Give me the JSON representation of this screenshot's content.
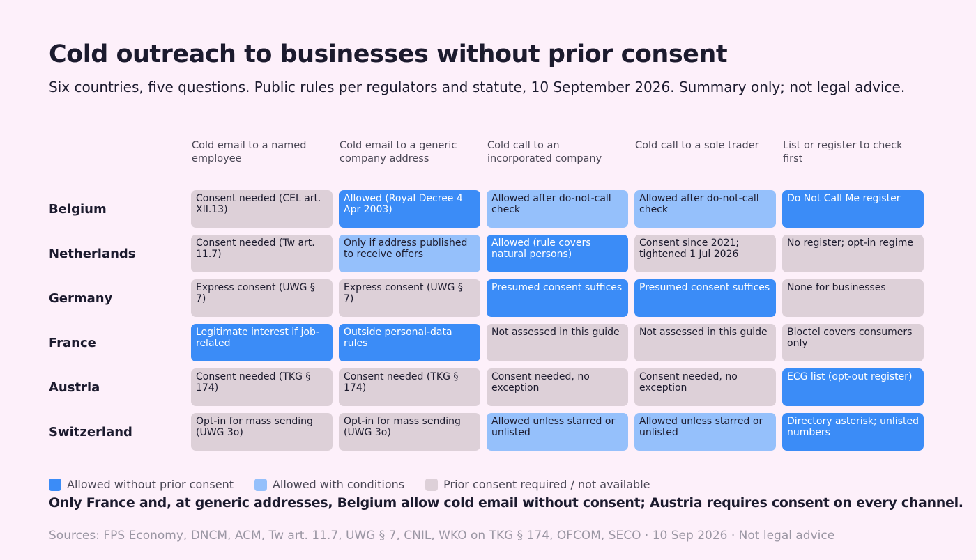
{
  "title": "Cold outreach to businesses without prior consent",
  "subtitle": "Six countries, five questions. Public rules per regulators and statute, 10 September 2026. Summary only; not legal advice.",
  "colors": {
    "allowed": "#3b8cf7",
    "conditions": "#95c0fb",
    "consent": "#ddd0d8"
  },
  "legend": [
    {
      "key": "allowed",
      "label": "Allowed without prior consent"
    },
    {
      "key": "conditions",
      "label": "Allowed with conditions"
    },
    {
      "key": "consent",
      "label": "Prior consent required / not available"
    }
  ],
  "takeaway": "Only France and, at generic addresses, Belgium allow cold email without consent; Austria requires consent on every channel.",
  "sources": "Sources: FPS Economy, DNCM, ACM, Tw art. 11.7, UWG § 7, CNIL, WKO on TKG § 174, OFCOM, SECO · 10 Sep 2026 · Not legal advice",
  "chart_data": {
    "type": "table",
    "columns": [
      "Cold email to a named employee",
      "Cold email to a generic company address",
      "Cold call to an incorporated company",
      "Cold call to a sole trader",
      "List or register to check first"
    ],
    "rows": [
      {
        "country": "Belgium",
        "cells": [
          {
            "text": "Consent needed (CEL art. XII.13)",
            "status": "consent"
          },
          {
            "text": "Allowed (Royal Decree 4 Apr 2003)",
            "status": "allowed"
          },
          {
            "text": "Allowed after do-not-call check",
            "status": "conditions"
          },
          {
            "text": "Allowed after do-not-call check",
            "status": "conditions"
          },
          {
            "text": "Do Not Call Me register",
            "status": "allowed"
          }
        ]
      },
      {
        "country": "Netherlands",
        "cells": [
          {
            "text": "Consent needed (Tw art. 11.7)",
            "status": "consent"
          },
          {
            "text": "Only if address published to receive offers",
            "status": "conditions"
          },
          {
            "text": "Allowed (rule covers natural persons)",
            "status": "allowed"
          },
          {
            "text": "Consent since 2021; tightened 1 Jul 2026",
            "status": "consent"
          },
          {
            "text": "No register; opt-in regime",
            "status": "consent"
          }
        ]
      },
      {
        "country": "Germany",
        "cells": [
          {
            "text": "Express consent (UWG § 7)",
            "status": "consent"
          },
          {
            "text": "Express consent (UWG § 7)",
            "status": "consent"
          },
          {
            "text": "Presumed consent suffices",
            "status": "allowed"
          },
          {
            "text": "Presumed consent suffices",
            "status": "allowed"
          },
          {
            "text": "None for businesses",
            "status": "consent"
          }
        ]
      },
      {
        "country": "France",
        "cells": [
          {
            "text": "Legitimate interest if job-related",
            "status": "allowed"
          },
          {
            "text": "Outside personal-data rules",
            "status": "allowed"
          },
          {
            "text": "Not assessed in this guide",
            "status": "consent"
          },
          {
            "text": "Not assessed in this guide",
            "status": "consent"
          },
          {
            "text": "Bloctel covers consumers only",
            "status": "consent"
          }
        ]
      },
      {
        "country": "Austria",
        "cells": [
          {
            "text": "Consent needed (TKG § 174)",
            "status": "consent"
          },
          {
            "text": "Consent needed (TKG § 174)",
            "status": "consent"
          },
          {
            "text": "Consent needed, no exception",
            "status": "consent"
          },
          {
            "text": "Consent needed, no exception",
            "status": "consent"
          },
          {
            "text": "ECG list (opt-out register)",
            "status": "allowed"
          }
        ]
      },
      {
        "country": "Switzerland",
        "cells": [
          {
            "text": "Opt-in for mass sending (UWG 3o)",
            "status": "consent"
          },
          {
            "text": "Opt-in for mass sending (UWG 3o)",
            "status": "consent"
          },
          {
            "text": "Allowed unless starred or unlisted",
            "status": "conditions"
          },
          {
            "text": "Allowed unless starred or unlisted",
            "status": "conditions"
          },
          {
            "text": "Directory asterisk; unlisted numbers",
            "status": "allowed"
          }
        ]
      }
    ]
  }
}
